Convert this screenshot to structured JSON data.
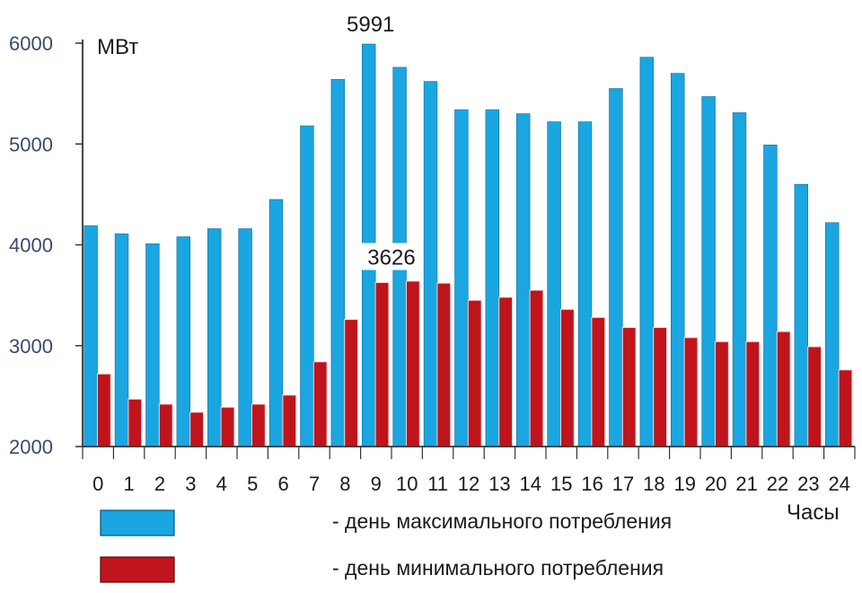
{
  "chart_data": {
    "type": "bar",
    "ylabel": "МВт",
    "xlabel": "Часы",
    "ylim": [
      2000,
      6000
    ],
    "yticks": [
      2000,
      3000,
      4000,
      5000,
      6000
    ],
    "categories": [
      "0",
      "1",
      "2",
      "3",
      "4",
      "5",
      "6",
      "7",
      "8",
      "9",
      "10",
      "11",
      "12",
      "13",
      "14",
      "15",
      "16",
      "17",
      "18",
      "19",
      "20",
      "21",
      "22",
      "23",
      "24"
    ],
    "series": [
      {
        "name": "- день максимального потребления",
        "color": "#1aa6e0",
        "values": [
          4190,
          4110,
          4010,
          4080,
          4160,
          4160,
          4450,
          5180,
          5640,
          5991,
          5760,
          5620,
          5340,
          5340,
          5300,
          5220,
          5220,
          5550,
          5860,
          5700,
          5470,
          5310,
          4990,
          4600,
          4220
        ]
      },
      {
        "name": "- день минимального потребления",
        "color": "#c0141c",
        "values": [
          2720,
          2470,
          2420,
          2340,
          2390,
          2420,
          2510,
          2840,
          3260,
          3626,
          3640,
          3620,
          3450,
          3480,
          3550,
          3360,
          3280,
          3180,
          3180,
          3080,
          3040,
          3040,
          3140,
          2990,
          2760
        ]
      }
    ],
    "annotations": [
      {
        "series": 0,
        "index": 9,
        "text": "5991"
      },
      {
        "series": 1,
        "index": 9,
        "text": "3626"
      }
    ],
    "legend_position": "bottom-left"
  }
}
